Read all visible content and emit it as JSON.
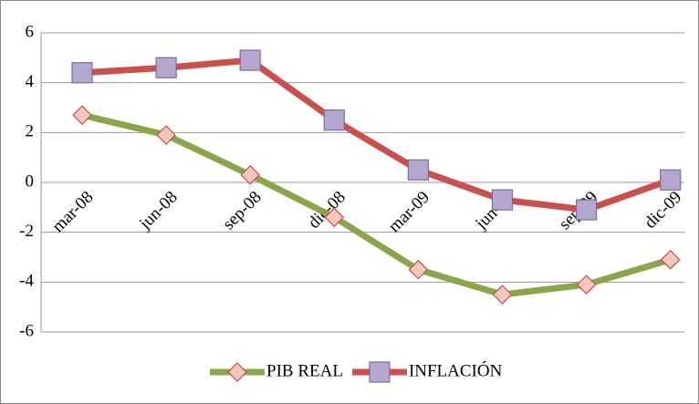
{
  "chart_data": {
    "type": "line",
    "categories": [
      "mar-08",
      "jun-08",
      "sep-08",
      "dic-08",
      "mar-09",
      "jun-09",
      "sep-09",
      "dic-09"
    ],
    "series": [
      {
        "name": "PIB REAL",
        "color": "#8ba64a",
        "marker_color": "#f5c6bd",
        "marker_edge": "#c0504d",
        "marker": "diamond",
        "values": [
          2.7,
          1.9,
          0.3,
          -1.4,
          -3.5,
          -4.5,
          -4.1,
          -3.1
        ]
      },
      {
        "name": "INFLACIÓN",
        "color": "#c9504b",
        "marker_color": "#b5a6cf",
        "marker_edge": "#7f6aa0",
        "marker": "square",
        "values": [
          4.4,
          4.6,
          4.9,
          2.5,
          0.5,
          -0.7,
          -1.1,
          0.1
        ]
      }
    ],
    "ylim": [
      -6,
      6
    ],
    "yticks": [
      -6,
      -4,
      -2,
      0,
      2,
      4,
      6
    ],
    "grid": true,
    "legend": "bottom"
  }
}
